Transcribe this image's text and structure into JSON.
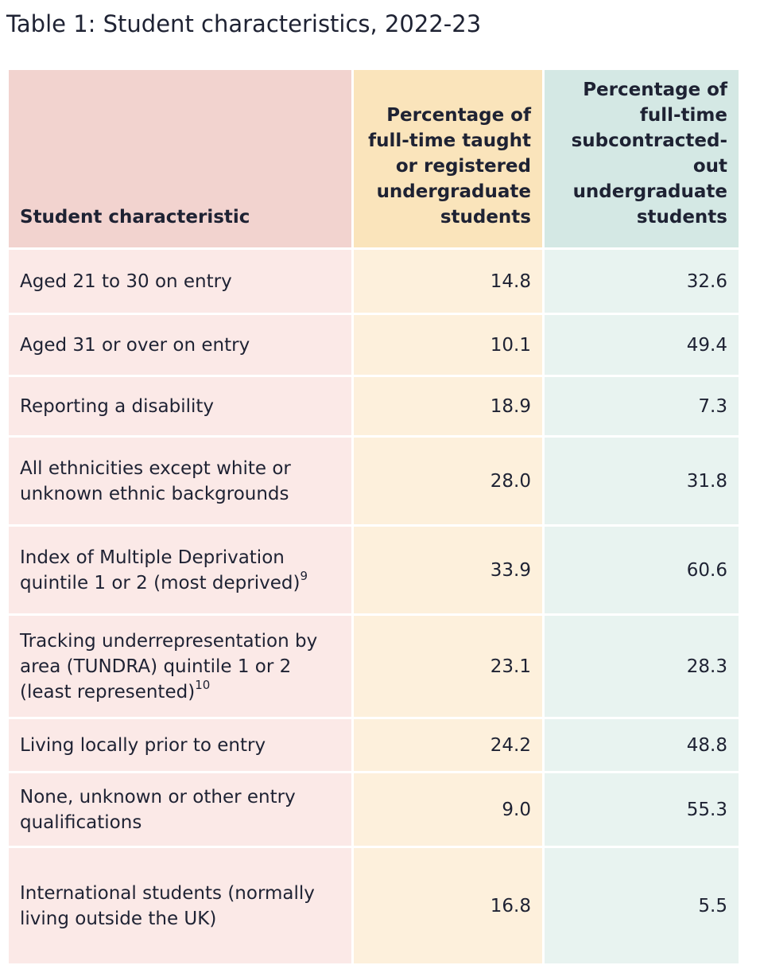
{
  "title": "Table 1: Student characteristics, 2022-23",
  "table": {
    "headers": {
      "characteristic": "Student characteristic",
      "taught": "Percentage of full-time taught or registered undergraduate students",
      "subcontracted": "Percentage of full-time subcontracted-out undergraduate students"
    },
    "rows": [
      {
        "label": "Aged 21 to 30 on entry",
        "footnote": "",
        "taught": "14.8",
        "subcontracted": "32.6"
      },
      {
        "label": "Aged 31 or over on entry",
        "footnote": "",
        "taught": "10.1",
        "subcontracted": "49.4"
      },
      {
        "label": "Reporting a disability",
        "footnote": "",
        "taught": "18.9",
        "subcontracted": "7.3"
      },
      {
        "label": "All ethnicities except white or unknown ethnic backgrounds",
        "footnote": "",
        "taught": "28.0",
        "subcontracted": "31.8"
      },
      {
        "label": "Index of Multiple Deprivation quintile 1 or 2 (most deprived)",
        "footnote": "9",
        "taught": "33.9",
        "subcontracted": "60.6"
      },
      {
        "label": "Tracking underrepresentation by area (TUNDRA) quintile 1 or 2 (least represented)",
        "footnote": "10",
        "taught": "23.1",
        "subcontracted": "28.3"
      },
      {
        "label": "Living locally prior to entry",
        "footnote": "",
        "taught": "24.2",
        "subcontracted": "48.8"
      },
      {
        "label": "None, unknown or other entry qualifications",
        "footnote": "",
        "taught": "9.0",
        "subcontracted": "55.3"
      },
      {
        "label": "International students (normally living outside the UK)",
        "footnote": "",
        "taught": "16.8",
        "subcontracted": "5.5"
      }
    ]
  }
}
